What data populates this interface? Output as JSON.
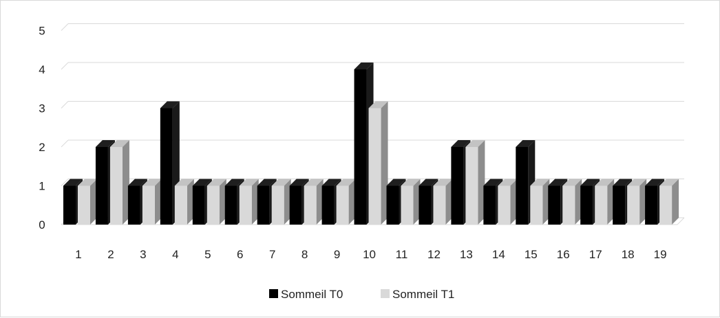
{
  "chart_data": {
    "type": "bar",
    "categories": [
      "1",
      "2",
      "3",
      "4",
      "5",
      "6",
      "7",
      "8",
      "9",
      "10",
      "11",
      "12",
      "13",
      "14",
      "15",
      "16",
      "17",
      "18",
      "19"
    ],
    "series": [
      {
        "name": "Sommeil T0",
        "values": [
          1,
          2,
          1,
          3,
          1,
          1,
          1,
          1,
          1,
          4,
          1,
          1,
          2,
          1,
          2,
          1,
          1,
          1,
          1
        ],
        "color": "#000000"
      },
      {
        "name": "Sommeil T1",
        "values": [
          1,
          2,
          1,
          1,
          1,
          1,
          1,
          1,
          1,
          3,
          1,
          1,
          2,
          1,
          1,
          1,
          1,
          1,
          1
        ],
        "color": "#d9d9d9"
      }
    ],
    "y_ticks": [
      "0",
      "1",
      "2",
      "3",
      "4",
      "5"
    ],
    "ylim": [
      0,
      5
    ],
    "grid": true,
    "legend_position": "bottom",
    "style": "3d-clustered-column"
  }
}
